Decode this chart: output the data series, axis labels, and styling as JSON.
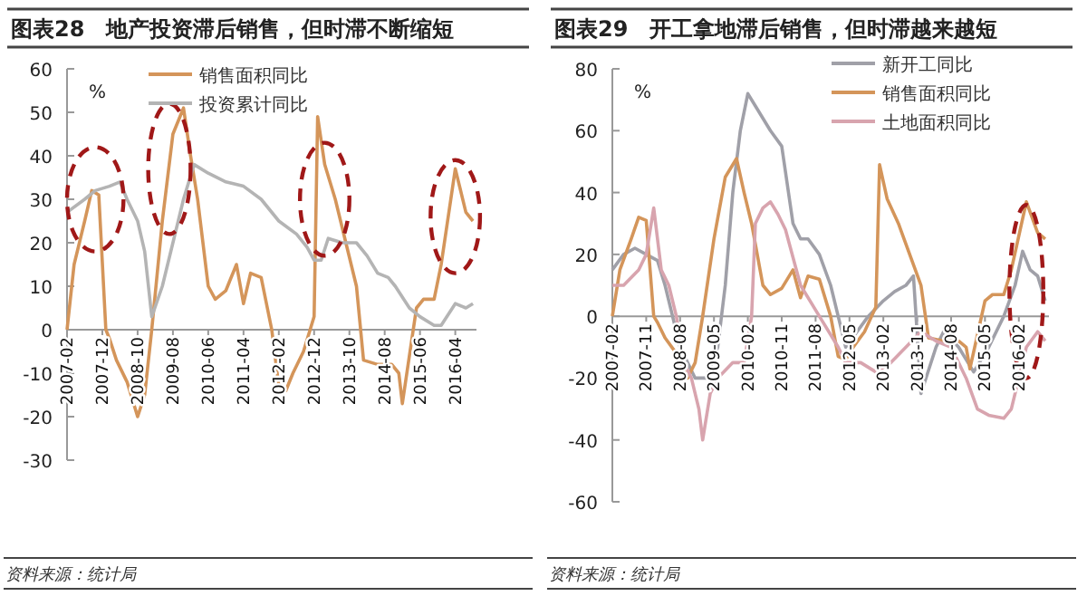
{
  "chart_data": [
    {
      "type": "line",
      "title": "图表28　地产投资滞后销售，但时滞不断缩短",
      "ylabel": "%",
      "annotations": [
        "资料来源：统计局"
      ],
      "legend": "top",
      "grid": false,
      "line_style": "solid",
      "xlim": [
        "2007-02",
        "2016-10"
      ],
      "xticks": [
        "2007-02",
        "2007-12",
        "2008-10",
        "2009-08",
        "2010-06",
        "2011-04",
        "2012-02",
        "2012-12",
        "2013-10",
        "2014-08",
        "2015-06",
        "2016-04"
      ],
      "ylim": [
        -30,
        60
      ],
      "yticks": [
        -30,
        -20,
        -10,
        0,
        10,
        20,
        30,
        40,
        50,
        60
      ],
      "series": [
        {
          "name": "销售面积同比",
          "color": "#d4955a",
          "x": [
            "2007-02",
            "2007-04",
            "2007-07",
            "2007-09",
            "2007-11",
            "2008-01",
            "2008-02",
            "2008-04",
            "2008-07",
            "2008-10",
            "2008-12",
            "2009-02",
            "2009-05",
            "2009-08",
            "2009-11",
            "2010-01",
            "2010-03",
            "2010-06",
            "2010-08",
            "2010-11",
            "2011-02",
            "2011-04",
            "2011-06",
            "2011-09",
            "2011-12",
            "2012-02",
            "2012-04",
            "2012-06",
            "2012-09",
            "2012-12",
            "2013-01",
            "2013-03",
            "2013-06",
            "2013-09",
            "2013-12",
            "2014-02",
            "2014-06",
            "2014-10",
            "2014-12",
            "2015-01",
            "2015-05",
            "2015-07",
            "2015-10",
            "2015-12",
            "2016-04",
            "2016-07",
            "2016-09"
          ],
          "values": [
            0,
            15,
            25,
            32,
            31,
            0,
            -2,
            -7,
            -12,
            -20,
            -15,
            0,
            25,
            45,
            51,
            40,
            30,
            10,
            7,
            9,
            15,
            6,
            13,
            12,
            0,
            -13,
            -14,
            -10,
            -5,
            3,
            49,
            38,
            30,
            20,
            10,
            -7,
            -8,
            -8,
            -10,
            -17,
            5,
            7,
            7,
            15,
            37,
            27,
            25
          ]
        },
        {
          "name": "投资累计同比",
          "color": "#b4b4b4",
          "x": [
            "2007-02",
            "2007-07",
            "2007-10",
            "2008-02",
            "2008-05",
            "2008-07",
            "2008-10",
            "2008-12",
            "2009-02",
            "2009-05",
            "2009-08",
            "2009-11",
            "2010-02",
            "2010-06",
            "2010-11",
            "2011-04",
            "2011-09",
            "2012-02",
            "2012-07",
            "2012-10",
            "2012-12",
            "2013-02",
            "2013-04",
            "2013-08",
            "2013-12",
            "2014-03",
            "2014-06",
            "2014-09",
            "2014-11",
            "2015-03",
            "2015-06",
            "2015-10",
            "2015-12",
            "2016-04",
            "2016-07",
            "2016-09"
          ],
          "values": [
            27,
            30,
            32,
            33,
            34,
            30,
            25,
            18,
            3,
            10,
            20,
            30,
            38,
            36,
            34,
            33,
            30,
            25,
            22,
            19,
            16,
            16,
            21,
            20,
            20,
            17,
            13,
            12,
            10,
            5,
            3,
            1,
            1,
            6,
            5,
            6
          ]
        }
      ]
    },
    {
      "type": "line",
      "title": "图表29　开工拿地滞后销售，但时滞越来越短",
      "ylabel": "%",
      "annotations": [
        "资料来源：统计局"
      ],
      "legend": "top right",
      "grid": false,
      "line_style": "solid",
      "xlim": [
        "2007-02",
        "2016-10"
      ],
      "xticks": [
        "2007-02",
        "2007-11",
        "2008-08",
        "2009-05",
        "2010-02",
        "2010-11",
        "2011-08",
        "2012-05",
        "2013-02",
        "2013-11",
        "2014-08",
        "2015-05",
        "2016-02"
      ],
      "ylim": [
        -60,
        80
      ],
      "yticks": [
        -60,
        -40,
        -20,
        0,
        20,
        40,
        60,
        80
      ],
      "series": [
        {
          "name": "新开工同比",
          "color": "#a0a0a8",
          "x": [
            "2007-02",
            "2007-05",
            "2007-08",
            "2007-11",
            "2008-02",
            "2008-04",
            "2008-06",
            "2008-08",
            "2008-10",
            "2008-12",
            "2009-03",
            "2009-06",
            "2009-08",
            "2009-10",
            "2009-12",
            "2010-02",
            "2010-04",
            "2010-08",
            "2010-11",
            "2011-02",
            "2011-04",
            "2011-06",
            "2011-09",
            "2011-12",
            "2012-02",
            "2012-04",
            "2012-07",
            "2012-10",
            "2013-02",
            "2013-05",
            "2013-08",
            "2013-10",
            "2013-12",
            "2014-04",
            "2014-06",
            "2014-10",
            "2015-02",
            "2015-06",
            "2015-10",
            "2016-01",
            "2016-03",
            "2016-05",
            "2016-07",
            "2016-09"
          ],
          "values": [
            15,
            20,
            22,
            20,
            18,
            10,
            0,
            -10,
            -15,
            -20,
            -20,
            -10,
            10,
            40,
            60,
            72,
            68,
            60,
            55,
            30,
            25,
            25,
            20,
            10,
            0,
            -10,
            -5,
            0,
            5,
            8,
            10,
            13,
            -25,
            -10,
            -5,
            -10,
            -18,
            -10,
            0,
            10,
            21,
            15,
            13,
            5
          ]
        },
        {
          "name": "销售面积同比",
          "color": "#d4955a",
          "x": [
            "2007-02",
            "2007-04",
            "2007-07",
            "2007-09",
            "2007-11",
            "2008-01",
            "2008-02",
            "2008-04",
            "2008-07",
            "2008-10",
            "2008-12",
            "2009-02",
            "2009-05",
            "2009-08",
            "2009-11",
            "2010-01",
            "2010-03",
            "2010-06",
            "2010-08",
            "2010-11",
            "2011-02",
            "2011-04",
            "2011-06",
            "2011-09",
            "2011-12",
            "2012-02",
            "2012-04",
            "2012-06",
            "2012-09",
            "2012-12",
            "2013-01",
            "2013-03",
            "2013-06",
            "2013-09",
            "2013-12",
            "2014-02",
            "2014-06",
            "2014-10",
            "2014-12",
            "2015-01",
            "2015-05",
            "2015-07",
            "2015-10",
            "2015-12",
            "2016-04",
            "2016-07",
            "2016-09"
          ],
          "values": [
            0,
            15,
            25,
            32,
            31,
            0,
            -2,
            -7,
            -12,
            -20,
            -15,
            0,
            25,
            45,
            51,
            40,
            30,
            10,
            7,
            9,
            15,
            6,
            13,
            12,
            0,
            -13,
            -14,
            -10,
            -5,
            3,
            49,
            38,
            30,
            20,
            10,
            -7,
            -8,
            -8,
            -10,
            -17,
            5,
            7,
            7,
            15,
            37,
            27,
            25
          ]
        },
        {
          "name": "土地面积同比",
          "color": "#d8a4ae",
          "x": [
            "2007-02",
            "2007-05",
            "2007-09",
            "2007-11",
            "2008-01",
            "2008-03",
            "2008-05",
            "2008-07",
            "2008-09",
            "2008-11",
            "2009-01",
            "2009-02",
            "2009-04",
            "2009-06",
            "2009-10",
            "2010-01",
            "2010-03",
            "2010-04",
            "2010-06",
            "2010-08",
            "2010-10",
            "2010-12",
            "2011-04",
            "2011-09",
            "2012-02",
            "2012-04",
            "2012-08",
            "2012-12",
            "2013-04",
            "2013-08",
            "2013-12",
            "2014-04",
            "2014-08",
            "2014-12",
            "2015-03",
            "2015-06",
            "2015-10",
            "2015-12",
            "2016-02",
            "2016-04",
            "2016-07",
            "2016-09"
          ],
          "values": [
            10,
            10,
            15,
            20,
            35,
            15,
            10,
            0,
            -15,
            -20,
            -30,
            -40,
            -25,
            -20,
            -15,
            -15,
            0,
            30,
            35,
            37,
            33,
            28,
            10,
            0,
            -10,
            -15,
            -15,
            -18,
            -15,
            -10,
            -5,
            -8,
            -10,
            -20,
            -30,
            -32,
            -33,
            -30,
            -20,
            -10,
            -5,
            -8
          ]
        }
      ]
    }
  ]
}
